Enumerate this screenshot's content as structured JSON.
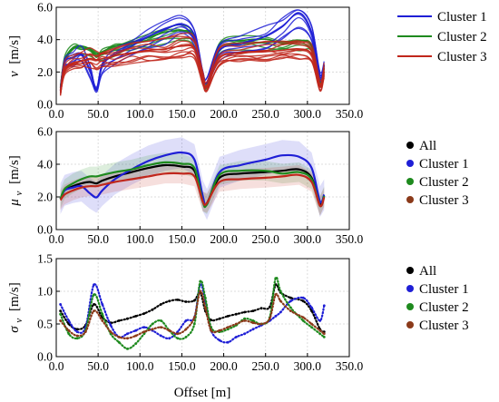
{
  "figure": {
    "xlabel": "Offset [m]"
  },
  "colors": {
    "all": "#000000",
    "cluster1": "#1f1fd6",
    "cluster2": "#1e8a1e",
    "cluster3": "#c0271c",
    "cluster3_marker": "#8b3a1a",
    "grid": "#d4d4d4"
  },
  "chart_data": [
    {
      "type": "line",
      "panel": "top",
      "ylabel_main": "v",
      "ylabel_unit": "[m/s]",
      "xlim": [
        0,
        350
      ],
      "ylim": [
        0,
        7
      ],
      "x_ticks": [
        "0.0",
        "50.0",
        "100.0",
        "150.0",
        "200.0",
        "250.0",
        "300.0",
        "350.0"
      ],
      "y_ticks": [
        "0.0",
        "2.0",
        "4.0",
        "6.0"
      ],
      "legend_position": "right",
      "legend": [
        "Cluster 1",
        "Cluster 2",
        "Cluster 3"
      ],
      "x": [
        5,
        10,
        20,
        30,
        40,
        48,
        55,
        70,
        90,
        110,
        130,
        150,
        165,
        175,
        180,
        195,
        220,
        250,
        270,
        290,
        305,
        315,
        320
      ],
      "series": [
        {
          "name": "Cluster 1",
          "values": [
            1.0,
            3.0,
            3.4,
            3.6,
            2.5,
            1.1,
            2.8,
            3.6,
            4.2,
            4.9,
            5.4,
            5.8,
            5.0,
            2.2,
            1.6,
            3.9,
            4.4,
            4.9,
            5.6,
            6.6,
            5.2,
            2.0,
            2.8
          ]
        },
        {
          "name": "Cluster 2",
          "values": [
            1.2,
            3.2,
            4.1,
            4.2,
            4.0,
            3.6,
            3.8,
            4.2,
            4.5,
            4.8,
            5.2,
            5.3,
            4.9,
            2.0,
            1.4,
            4.3,
            4.6,
            4.7,
            4.4,
            4.6,
            4.2,
            1.6,
            2.6
          ]
        },
        {
          "name": "Cluster 3",
          "values": [
            1.0,
            2.5,
            3.0,
            3.1,
            3.3,
            3.2,
            3.3,
            3.5,
            3.7,
            3.9,
            4.0,
            4.2,
            4.0,
            1.9,
            1.3,
            3.4,
            3.7,
            3.8,
            3.9,
            4.0,
            3.6,
            1.3,
            2.4
          ]
        }
      ]
    },
    {
      "type": "line",
      "panel": "middle",
      "ylabel_main": "μ",
      "ylabel_sub": "v",
      "ylabel_unit": "[m/s]",
      "xlim": [
        0,
        350
      ],
      "ylim": [
        0,
        7
      ],
      "x_ticks": [
        "0.0",
        "50.0",
        "100.0",
        "150.0",
        "200.0",
        "250.0",
        "300.0",
        "350.0"
      ],
      "y_ticks": [
        "0.0",
        "2.0",
        "4.0",
        "6.0"
      ],
      "legend_position": "right",
      "legend": [
        "All",
        "Cluster 1",
        "Cluster 2",
        "Cluster 3"
      ],
      "x": [
        5,
        10,
        20,
        30,
        40,
        48,
        55,
        70,
        90,
        110,
        130,
        150,
        165,
        175,
        180,
        195,
        220,
        250,
        270,
        290,
        305,
        315,
        320
      ],
      "series": [
        {
          "name": "All",
          "values": [
            2.2,
            2.8,
            3.1,
            3.3,
            3.4,
            3.3,
            3.5,
            3.8,
            4.1,
            4.4,
            4.6,
            4.5,
            4.2,
            2.0,
            1.9,
            3.7,
            4.0,
            4.1,
            4.2,
            4.3,
            3.7,
            1.8,
            2.4
          ]
        },
        {
          "name": "Cluster 1",
          "values": [
            2.2,
            2.8,
            3.0,
            3.1,
            2.6,
            2.3,
            2.8,
            3.6,
            4.3,
            4.9,
            5.3,
            5.5,
            5.0,
            2.4,
            1.8,
            4.1,
            4.6,
            5.0,
            5.3,
            5.2,
            4.4,
            2.0,
            2.5
          ]
        },
        {
          "name": "Cluster 2",
          "values": [
            2.2,
            2.9,
            3.3,
            3.6,
            3.8,
            3.8,
            3.9,
            4.1,
            4.3,
            4.6,
            4.8,
            4.7,
            4.4,
            2.0,
            1.8,
            3.9,
            4.2,
            4.2,
            4.0,
            4.1,
            3.6,
            1.7,
            2.4
          ]
        },
        {
          "name": "Cluster 3",
          "values": [
            2.1,
            2.5,
            2.8,
            3.0,
            3.1,
            3.1,
            3.2,
            3.4,
            3.6,
            3.8,
            4.0,
            4.0,
            3.8,
            2.0,
            1.9,
            3.4,
            3.6,
            3.7,
            3.8,
            3.9,
            3.4,
            1.7,
            2.3
          ]
        }
      ]
    },
    {
      "type": "scatter",
      "panel": "bottom",
      "ylabel_main": "σ",
      "ylabel_sub": "v",
      "ylabel_unit": "[m/s]",
      "xlim": [
        0,
        350
      ],
      "ylim": [
        0,
        1.5
      ],
      "x_ticks": [
        "0.0",
        "50.0",
        "100.0",
        "150.0",
        "200.0",
        "250.0",
        "300.0",
        "350.0"
      ],
      "y_ticks": [
        "0.0",
        "0.5",
        "1.0",
        "1.5"
      ],
      "legend_position": "right",
      "legend": [
        "All",
        "Cluster 1",
        "Cluster 2",
        "Cluster 3"
      ],
      "x": [
        5,
        15,
        25,
        35,
        45,
        55,
        65,
        75,
        85,
        95,
        105,
        115,
        125,
        135,
        145,
        155,
        165,
        172,
        178,
        185,
        195,
        205,
        215,
        225,
        235,
        245,
        255,
        262,
        268,
        280,
        295,
        305,
        315,
        320
      ],
      "series": [
        {
          "name": "All",
          "values": [
            0.7,
            0.5,
            0.42,
            0.48,
            0.8,
            0.6,
            0.52,
            0.55,
            0.58,
            0.62,
            0.66,
            0.72,
            0.8,
            0.85,
            0.87,
            0.84,
            0.86,
            0.98,
            0.7,
            0.56,
            0.58,
            0.62,
            0.65,
            0.68,
            0.7,
            0.74,
            0.76,
            1.1,
            0.98,
            0.9,
            0.85,
            0.7,
            0.42,
            0.38
          ]
        },
        {
          "name": "Cluster 1",
          "values": [
            0.8,
            0.55,
            0.38,
            0.45,
            1.1,
            0.8,
            0.48,
            0.3,
            0.35,
            0.4,
            0.45,
            0.4,
            0.32,
            0.28,
            0.38,
            0.55,
            0.6,
            1.1,
            0.85,
            0.4,
            0.25,
            0.22,
            0.3,
            0.35,
            0.42,
            0.48,
            0.55,
            0.62,
            0.68,
            0.85,
            0.9,
            0.75,
            0.55,
            0.78
          ]
        },
        {
          "name": "Cluster 2",
          "values": [
            0.65,
            0.35,
            0.28,
            0.4,
            0.95,
            0.65,
            0.35,
            0.22,
            0.12,
            0.2,
            0.35,
            0.5,
            0.55,
            0.4,
            0.28,
            0.3,
            0.5,
            1.15,
            0.9,
            0.45,
            0.38,
            0.42,
            0.48,
            0.58,
            0.55,
            0.5,
            0.6,
            1.2,
            1.0,
            0.75,
            0.55,
            0.45,
            0.35,
            0.3
          ]
        },
        {
          "name": "Cluster 3",
          "values": [
            0.55,
            0.4,
            0.32,
            0.38,
            0.7,
            0.55,
            0.38,
            0.3,
            0.28,
            0.32,
            0.38,
            0.42,
            0.45,
            0.4,
            0.35,
            0.42,
            0.6,
            1.0,
            0.75,
            0.4,
            0.4,
            0.45,
            0.5,
            0.55,
            0.52,
            0.5,
            0.58,
            0.95,
            0.85,
            0.7,
            0.6,
            0.5,
            0.4,
            0.35
          ]
        }
      ]
    }
  ]
}
